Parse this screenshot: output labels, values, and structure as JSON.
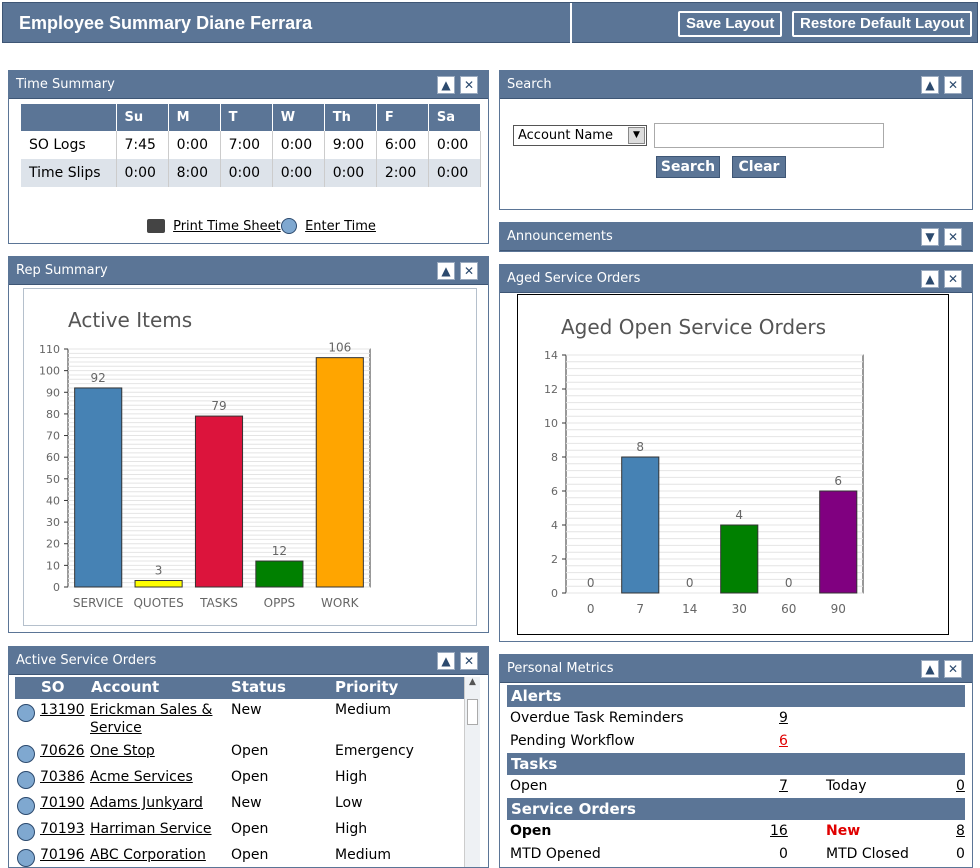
{
  "header": {
    "title": "Employee Summary Diane Ferrara",
    "save_layout": "Save Layout",
    "restore_layout": "Restore Default Layout"
  },
  "time_summary": {
    "title": "Time Summary",
    "days": [
      "Su",
      "M",
      "T",
      "W",
      "Th",
      "F",
      "Sa"
    ],
    "rows": [
      {
        "label": "SO Logs",
        "values": [
          "7:45",
          "0:00",
          "7:00",
          "0:00",
          "9:00",
          "6:00",
          "0:00"
        ]
      },
      {
        "label": "Time Slips",
        "values": [
          "0:00",
          "8:00",
          "0:00",
          "0:00",
          "0:00",
          "2:00",
          "0:00"
        ]
      }
    ],
    "print_link": "Print Time Sheet",
    "enter_link": "Enter Time"
  },
  "rep_summary": {
    "title": "Rep Summary"
  },
  "search": {
    "title": "Search",
    "field_option": "Account Name",
    "input_value": "",
    "search_button": "Search",
    "clear_button": "Clear"
  },
  "announcements": {
    "title": "Announcements"
  },
  "aged": {
    "title": "Aged Service Orders"
  },
  "active_so": {
    "title": "Active Service Orders",
    "columns": [
      "SO",
      "Account",
      "Status",
      "Priority"
    ],
    "rows": [
      {
        "so": "13190",
        "account": "Erickman Sales &",
        "account2": "Service",
        "status": "New",
        "priority": "Medium"
      },
      {
        "so": "70626",
        "account": "One Stop",
        "status": "Open",
        "priority": "Emergency"
      },
      {
        "so": "70386",
        "account": "Acme Services",
        "status": "Open",
        "priority": "High"
      },
      {
        "so": "70190",
        "account": "Adams Junkyard",
        "status": "New",
        "priority": "Low"
      },
      {
        "so": "70193",
        "account": "Harriman Service",
        "status": "Open",
        "priority": "High"
      },
      {
        "so": "70196",
        "account": "ABC Corporation",
        "status": "Open",
        "priority": "Medium"
      }
    ]
  },
  "personal_metrics": {
    "title": "Personal Metrics",
    "alerts_h": "Alerts",
    "overdue_label": "Overdue Task Reminders",
    "overdue_value": "9",
    "pending_label": "Pending Workflow",
    "pending_value": "6",
    "tasks_h": "Tasks",
    "open_label": "Open",
    "open_value": "7",
    "today_label": "Today",
    "today_value": "0",
    "so_h": "Service Orders",
    "so_open_label": "Open",
    "so_open_value": "16",
    "so_new_label": "New",
    "so_new_value": "8",
    "mtd_opened_label": "MTD Opened",
    "mtd_opened_value": "0",
    "mtd_closed_label": "MTD Closed",
    "mtd_closed_value": "0"
  },
  "colors": {
    "panel_header": "#5b7596",
    "blue": "#4682b4",
    "yellow": "#ffff00",
    "red": "#dc143c",
    "green": "#008000",
    "orange": "#ffa500",
    "purple": "#800080"
  },
  "chart_data": [
    {
      "type": "bar",
      "title": "Active Items",
      "categories": [
        "SERVICE",
        "QUOTES",
        "TASKS",
        "OPPS",
        "WORK"
      ],
      "values": [
        92,
        3,
        79,
        12,
        106
      ],
      "colors": [
        "#4682b4",
        "#ffff00",
        "#dc143c",
        "#008000",
        "#ffa500"
      ],
      "yticks": [
        0,
        10,
        20,
        30,
        40,
        50,
        60,
        70,
        80,
        90,
        100,
        110
      ],
      "ylim": [
        0,
        110
      ],
      "grid": true
    },
    {
      "type": "bar",
      "title": "Aged Open Service Orders",
      "categories": [
        "0",
        "7",
        "14",
        "30",
        "60",
        "90"
      ],
      "values": [
        0,
        8,
        0,
        4,
        0,
        6
      ],
      "colors": [
        "#4682b4",
        "#4682b4",
        "#4682b4",
        "#008000",
        "#008000",
        "#800080"
      ],
      "yticks": [
        0,
        2,
        4,
        6,
        8,
        10,
        12,
        14
      ],
      "ylim": [
        0,
        14
      ],
      "grid": true
    }
  ]
}
